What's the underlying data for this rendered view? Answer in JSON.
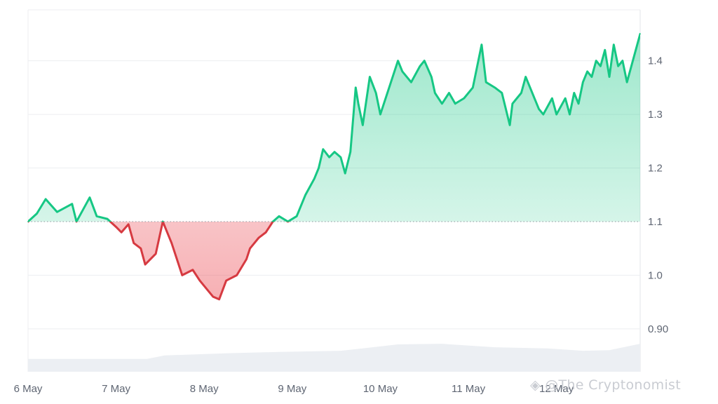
{
  "chart_data": {
    "type": "area",
    "title": "",
    "xlabel": "",
    "ylabel": "",
    "x_tick_labels": [
      "6 May",
      "7 May",
      "8 May",
      "9 May",
      "10 May",
      "11 May",
      "12 May"
    ],
    "y_ticks": [
      0.9,
      1.0,
      1.1,
      1.2,
      1.3,
      1.4
    ],
    "y_tick_labels": [
      "0.90",
      "1.0",
      "1.1",
      "1.2",
      "1.3",
      "1.4"
    ],
    "ylim": [
      0.82,
      1.495
    ],
    "xlim": [
      0,
      6.95
    ],
    "baseline": 1.1,
    "grid": "horizontal",
    "colors": {
      "up_line": "#16c784",
      "down_line": "#d63a41",
      "up_fill": "#16c784",
      "down_fill": "#ea3943",
      "grid": "#eceef1",
      "baseline": "#9aa0a8",
      "volume": "#eceff3"
    },
    "price": {
      "x": [
        0,
        0.1,
        0.2,
        0.33,
        0.5,
        0.55,
        0.7,
        0.78,
        0.9,
        1.0,
        1.06,
        1.14,
        1.2,
        1.28,
        1.33,
        1.45,
        1.53,
        1.63,
        1.75,
        1.87,
        1.95,
        2.0,
        2.1,
        2.17,
        2.25,
        2.37,
        2.48,
        2.52,
        2.62,
        2.7,
        2.78,
        2.85,
        2.95,
        3.05,
        3.15,
        3.25,
        3.3,
        3.35,
        3.42,
        3.48,
        3.55,
        3.6,
        3.66,
        3.72,
        3.75,
        3.8,
        3.88,
        3.95,
        4.0,
        4.08,
        4.12,
        4.2,
        4.25,
        4.35,
        4.45,
        4.5,
        4.58,
        4.62,
        4.7,
        4.78,
        4.85,
        4.95,
        5.05,
        5.15,
        5.2,
        5.3,
        5.38,
        5.47,
        5.5,
        5.55,
        5.6,
        5.65,
        5.75,
        5.8,
        5.85,
        5.95,
        6.0,
        6.1,
        6.15,
        6.2,
        6.25,
        6.3,
        6.35,
        6.4,
        6.45,
        6.5,
        6.55,
        6.6,
        6.65,
        6.7,
        6.75,
        6.8,
        6.85,
        6.9,
        6.95
      ],
      "y": [
        1.1,
        1.115,
        1.142,
        1.118,
        1.133,
        1.1,
        1.145,
        1.11,
        1.105,
        1.09,
        1.08,
        1.095,
        1.06,
        1.05,
        1.02,
        1.04,
        1.1,
        1.06,
        1.0,
        1.01,
        0.99,
        0.98,
        0.96,
        0.955,
        0.99,
        1.0,
        1.03,
        1.05,
        1.07,
        1.08,
        1.1,
        1.11,
        1.1,
        1.11,
        1.15,
        1.18,
        1.2,
        1.235,
        1.22,
        1.23,
        1.22,
        1.19,
        1.23,
        1.35,
        1.32,
        1.28,
        1.37,
        1.34,
        1.3,
        1.34,
        1.36,
        1.4,
        1.38,
        1.36,
        1.39,
        1.4,
        1.37,
        1.34,
        1.32,
        1.34,
        1.32,
        1.33,
        1.35,
        1.43,
        1.36,
        1.35,
        1.34,
        1.28,
        1.32,
        1.33,
        1.34,
        1.37,
        1.33,
        1.31,
        1.3,
        1.33,
        1.3,
        1.33,
        1.3,
        1.34,
        1.32,
        1.36,
        1.38,
        1.37,
        1.4,
        1.39,
        1.42,
        1.37,
        1.43,
        1.39,
        1.4,
        1.36,
        1.39,
        1.42,
        1.45
      ]
    },
    "volume": {
      "x": [
        0,
        1.35,
        1.55,
        2.3,
        2.85,
        3.55,
        3.85,
        4.2,
        4.7,
        5.3,
        5.9,
        6.3,
        6.6,
        6.95
      ],
      "level": [
        0.22,
        0.22,
        0.28,
        0.32,
        0.34,
        0.36,
        0.41,
        0.47,
        0.48,
        0.42,
        0.4,
        0.36,
        0.37,
        0.48
      ]
    }
  },
  "watermark": "◈ @The Cryptonomist"
}
